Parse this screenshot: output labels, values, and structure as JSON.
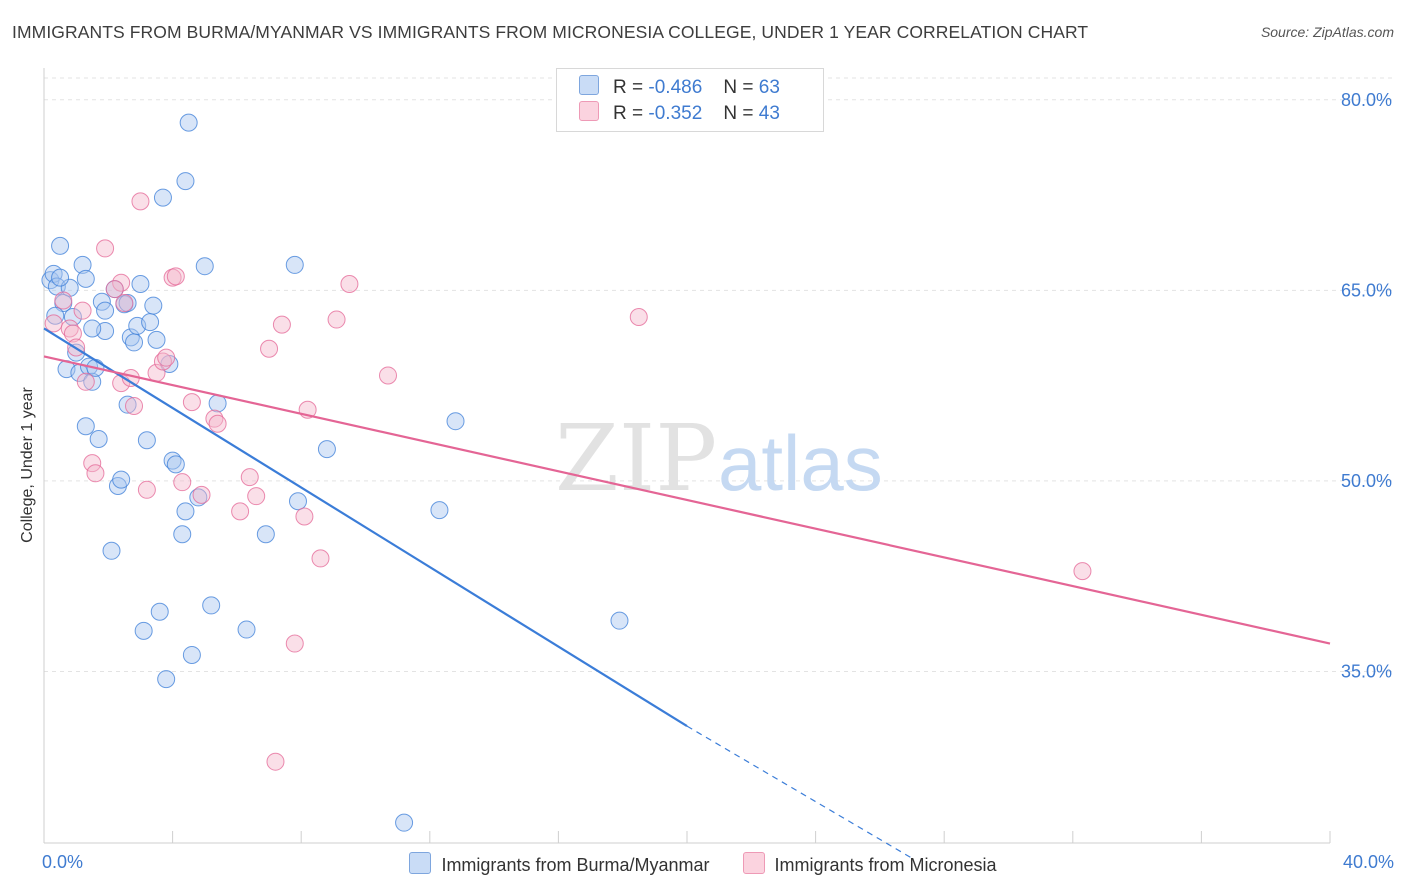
{
  "header": {
    "title": "IMMIGRANTS FROM BURMA/MYANMAR VS IMMIGRANTS FROM MICRONESIA COLLEGE, UNDER 1 YEAR CORRELATION CHART",
    "source": "Source: ZipAtlas.com"
  },
  "watermark": {
    "part1": "ZIP",
    "part2": "atlas"
  },
  "legend": {
    "r_label": "R =",
    "n_label": "N =",
    "series": [
      {
        "r": "-0.486",
        "n": "63",
        "color": "#a9c6ef"
      },
      {
        "r": "-0.352",
        "n": "43",
        "color": "#f5b8cb"
      }
    ]
  },
  "chart_data": {
    "type": "scatter",
    "title": "IMMIGRANTS FROM BURMA/MYANMAR VS IMMIGRANTS FROM MICRONESIA COLLEGE, UNDER 1 YEAR CORRELATION CHART",
    "xlabel": "",
    "ylabel": "College, Under 1 year",
    "xlim": [
      0,
      40
    ],
    "ylim": [
      21.5,
      82.5
    ],
    "x_tick_labels": [
      "0.0%",
      "40.0%"
    ],
    "y_ticks": [
      35,
      50,
      65,
      80
    ],
    "y_tick_labels": [
      "35.0%",
      "50.0%",
      "65.0%",
      "80.0%"
    ],
    "grid": true,
    "legend_position": "top-center",
    "series": [
      {
        "name": "Immigrants from Burma/Myanmar",
        "color": "#3b7dd8",
        "fill": "#a9c6ef",
        "trend": {
          "x0": 0,
          "y0": 62.0,
          "x1": 20.0,
          "y1": 30.7,
          "dash_to_x": 27.0,
          "dash_to_y": 20.3
        },
        "points": [
          [
            0.2,
            65.8
          ],
          [
            0.3,
            66.3
          ],
          [
            0.4,
            65.3
          ],
          [
            0.5,
            68.5
          ],
          [
            0.6,
            64.0
          ],
          [
            0.7,
            58.8
          ],
          [
            0.8,
            65.2
          ],
          [
            0.9,
            62.9
          ],
          [
            1.0,
            60.1
          ],
          [
            1.1,
            58.5
          ],
          [
            1.2,
            67.0
          ],
          [
            1.3,
            54.3
          ],
          [
            1.4,
            59.0
          ],
          [
            1.5,
            57.8
          ],
          [
            1.6,
            58.9
          ],
          [
            1.7,
            53.3
          ],
          [
            1.8,
            64.1
          ],
          [
            1.9,
            61.8
          ],
          [
            2.1,
            44.5
          ],
          [
            2.2,
            65.1
          ],
          [
            2.3,
            49.6
          ],
          [
            2.4,
            50.1
          ],
          [
            2.5,
            63.9
          ],
          [
            2.6,
            56.0
          ],
          [
            2.7,
            61.3
          ],
          [
            2.8,
            60.9
          ],
          [
            2.9,
            62.2
          ],
          [
            3.0,
            65.5
          ],
          [
            3.1,
            38.2
          ],
          [
            3.2,
            53.2
          ],
          [
            3.3,
            62.5
          ],
          [
            3.4,
            63.8
          ],
          [
            3.5,
            61.1
          ],
          [
            3.6,
            39.7
          ],
          [
            3.7,
            72.3
          ],
          [
            3.8,
            34.4
          ],
          [
            3.9,
            59.2
          ],
          [
            4.0,
            51.6
          ],
          [
            4.1,
            51.3
          ],
          [
            4.3,
            45.8
          ],
          [
            4.4,
            73.6
          ],
          [
            4.5,
            78.2
          ],
          [
            4.4,
            47.6
          ],
          [
            4.6,
            36.3
          ],
          [
            4.8,
            48.7
          ],
          [
            5.0,
            66.9
          ],
          [
            5.2,
            40.2
          ],
          [
            5.4,
            56.1
          ],
          [
            6.3,
            38.3
          ],
          [
            6.9,
            45.8
          ],
          [
            7.8,
            67.0
          ],
          [
            7.9,
            48.4
          ],
          [
            8.8,
            52.5
          ],
          [
            11.2,
            23.1
          ],
          [
            12.3,
            47.7
          ],
          [
            12.8,
            54.7
          ],
          [
            17.9,
            39.0
          ],
          [
            0.5,
            66.0
          ],
          [
            1.3,
            65.9
          ],
          [
            1.5,
            62.0
          ],
          [
            1.9,
            63.4
          ],
          [
            2.6,
            64.0
          ],
          [
            0.35,
            63.0
          ]
        ]
      },
      {
        "name": "Immigrants from Micronesia",
        "color": "#e46595",
        "fill": "#f5b8cb",
        "trend": {
          "x0": 0,
          "y0": 59.8,
          "x1": 40,
          "y1": 37.2
        },
        "points": [
          [
            0.3,
            62.4
          ],
          [
            0.6,
            64.2
          ],
          [
            0.8,
            62.0
          ],
          [
            0.9,
            61.6
          ],
          [
            1.0,
            60.5
          ],
          [
            1.2,
            63.4
          ],
          [
            1.3,
            57.8
          ],
          [
            1.5,
            51.4
          ],
          [
            1.6,
            50.6
          ],
          [
            1.9,
            68.3
          ],
          [
            2.4,
            65.6
          ],
          [
            2.2,
            65.1
          ],
          [
            2.4,
            57.7
          ],
          [
            2.5,
            64.0
          ],
          [
            2.8,
            55.9
          ],
          [
            2.7,
            58.1
          ],
          [
            3.0,
            72.0
          ],
          [
            3.2,
            49.3
          ],
          [
            3.5,
            58.5
          ],
          [
            3.7,
            59.4
          ],
          [
            3.8,
            59.7
          ],
          [
            4.0,
            66.0
          ],
          [
            4.1,
            66.1
          ],
          [
            4.3,
            49.9
          ],
          [
            4.6,
            56.2
          ],
          [
            4.9,
            48.9
          ],
          [
            5.3,
            54.9
          ],
          [
            5.4,
            54.5
          ],
          [
            6.1,
            47.6
          ],
          [
            6.4,
            50.3
          ],
          [
            6.6,
            48.8
          ],
          [
            7.0,
            60.4
          ],
          [
            7.4,
            62.3
          ],
          [
            7.8,
            37.2
          ],
          [
            8.1,
            47.2
          ],
          [
            8.2,
            55.6
          ],
          [
            8.6,
            43.9
          ],
          [
            9.1,
            62.7
          ],
          [
            9.5,
            65.5
          ],
          [
            10.7,
            58.3
          ],
          [
            18.5,
            62.9
          ],
          [
            32.3,
            42.9
          ],
          [
            7.2,
            27.9
          ]
        ]
      }
    ]
  }
}
